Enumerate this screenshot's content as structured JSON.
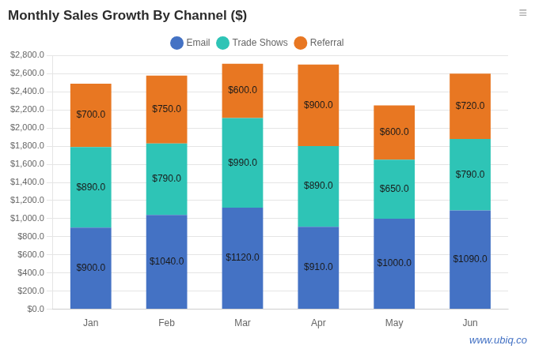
{
  "chart_data": {
    "type": "bar",
    "title": "Monthly Sales Growth By Channel ($)",
    "categories": [
      "Jan",
      "Feb",
      "Mar",
      "Apr",
      "May",
      "Jun"
    ],
    "stacked": true,
    "series": [
      {
        "name": "Email",
        "color": "#4472C4",
        "values": [
          900,
          1040,
          1120,
          910,
          1000,
          1090
        ],
        "value_labels": [
          "$900.0",
          "$1040.0",
          "$1120.0",
          "$910.0",
          "$1000.0",
          "$1090.0"
        ]
      },
      {
        "name": "Trade Shows",
        "color": "#2EC4B6",
        "values": [
          890,
          790,
          990,
          890,
          650,
          790
        ],
        "value_labels": [
          "$890.0",
          "$790.0",
          "$990.0",
          "$890.0",
          "$650.0",
          "$790.0"
        ]
      },
      {
        "name": "Referral",
        "color": "#E87722",
        "values": [
          700,
          750,
          600,
          900,
          600,
          720
        ],
        "value_labels": [
          "$700.0",
          "$750.0",
          "$600.0",
          "$900.0",
          "$600.0",
          "$720.0"
        ]
      }
    ],
    "ylim": [
      0,
      2800
    ],
    "yticks": [
      {
        "value": 0,
        "label": "$0.0"
      },
      {
        "value": 200,
        "label": "$200.0"
      },
      {
        "value": 400,
        "label": "$400.0"
      },
      {
        "value": 600,
        "label": "$600.0"
      },
      {
        "value": 800,
        "label": "$800.0"
      },
      {
        "value": 1000,
        "label": "$1,000.0"
      },
      {
        "value": 1200,
        "label": "$1,200.0"
      },
      {
        "value": 1400,
        "label": "$1,400.0"
      },
      {
        "value": 1600,
        "label": "$1,600.0"
      },
      {
        "value": 1800,
        "label": "$1,800.0"
      },
      {
        "value": 2000,
        "label": "$2,000.0"
      },
      {
        "value": 2200,
        "label": "$2,200.0"
      },
      {
        "value": 2400,
        "label": "$2,400.0"
      },
      {
        "value": 2600,
        "label": "$2,600.0"
      },
      {
        "value": 2800,
        "label": "$2,800.0"
      }
    ],
    "grid": true,
    "legend": "top",
    "data_labels": true,
    "annotations": [
      "≡",
      "www.ubiq.co"
    ]
  }
}
